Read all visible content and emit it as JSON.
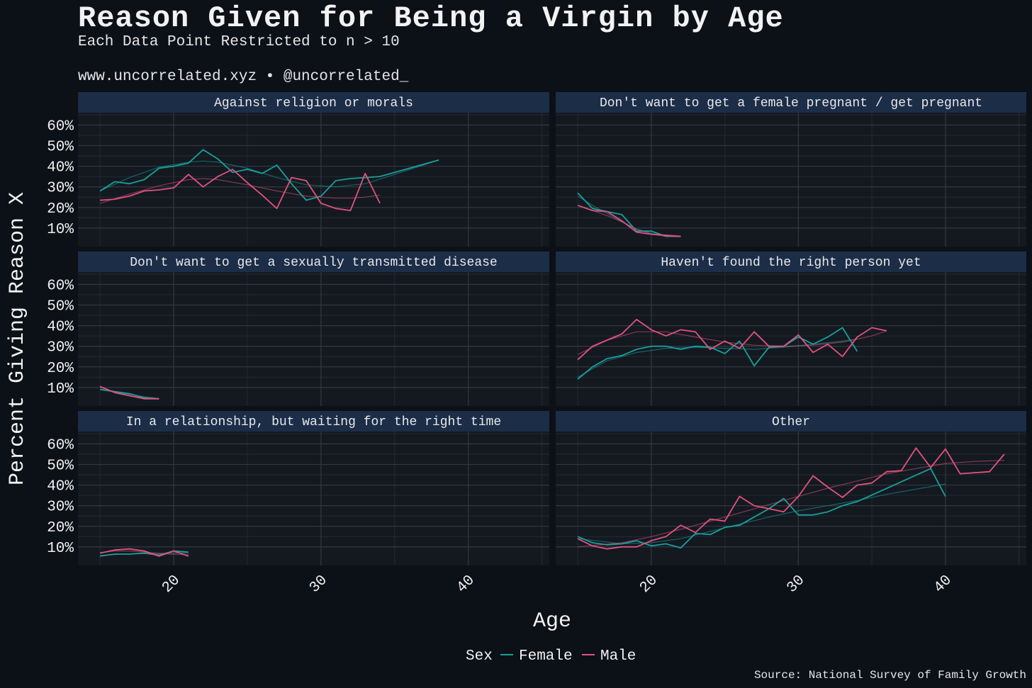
{
  "title": "Reason Given for Being a Virgin by Age",
  "subtitle": "Each Data Point Restricted to n > 10",
  "credit": "www.uncorrelated.xyz • @uncorrelated_",
  "source": "Source: National Survey of Family Growth",
  "colors": {
    "female": "#1a9e9a",
    "male": "#e0527e",
    "background": "#0c1017",
    "panel": "#141920",
    "strip": "#1c2d48"
  },
  "chart_data": {
    "type": "line",
    "xlabel": "Age",
    "ylabel": "Percent Giving Reason X",
    "xlim": [
      13.5,
      45.5
    ],
    "ylim": [
      0.01,
      0.66
    ],
    "x_ticks": [
      20,
      30,
      40
    ],
    "x_tick_labels": [
      "20",
      "30",
      "40"
    ],
    "y_ticks": [
      0.1,
      0.2,
      0.3,
      0.4,
      0.5,
      0.6
    ],
    "y_tick_labels": [
      "10%",
      "20%",
      "30%",
      "40%",
      "50%",
      "60%"
    ],
    "legend": {
      "title": "Sex",
      "position": "bottom",
      "entries": [
        "Female",
        "Male"
      ]
    },
    "smoothed_trend": true,
    "panels": [
      {
        "name": "Against religion or morals",
        "series": [
          {
            "name": "Female",
            "x": [
              15,
              16,
              17,
              18,
              19,
              20,
              21,
              22,
              23,
              24,
              25,
              26,
              27,
              28,
              29,
              30,
              31,
              32,
              33,
              34,
              38
            ],
            "y": [
              0.28,
              0.325,
              0.315,
              0.335,
              0.39,
              0.4,
              0.415,
              0.48,
              0.435,
              0.37,
              0.385,
              0.365,
              0.405,
              0.315,
              0.235,
              0.255,
              0.33,
              0.34,
              0.345,
              0.35,
              0.43
            ],
            "smooth_x": [
              15,
              17,
              19,
              21,
              22,
              23,
              25,
              27,
              29,
              31,
              33,
              35,
              38
            ],
            "smooth_y": [
              0.28,
              0.345,
              0.395,
              0.42,
              0.425,
              0.42,
              0.39,
              0.345,
              0.31,
              0.3,
              0.315,
              0.36,
              0.43
            ]
          },
          {
            "name": "Male",
            "x": [
              15,
              16,
              17,
              18,
              19,
              20,
              21,
              22,
              23,
              24,
              25,
              26,
              27,
              28,
              29,
              30,
              31,
              32,
              33,
              34
            ],
            "y": [
              0.235,
              0.24,
              0.255,
              0.28,
              0.285,
              0.295,
              0.36,
              0.3,
              0.35,
              0.385,
              0.32,
              0.26,
              0.195,
              0.345,
              0.33,
              0.22,
              0.195,
              0.185,
              0.365,
              0.22
            ],
            "smooth_x": [
              15,
              17,
              19,
              21,
              22,
              23,
              25,
              27,
              29,
              31,
              32,
              33,
              34
            ],
            "smooth_y": [
              0.22,
              0.265,
              0.305,
              0.335,
              0.34,
              0.335,
              0.31,
              0.28,
              0.255,
              0.245,
              0.245,
              0.25,
              0.26
            ]
          }
        ]
      },
      {
        "name": "Don't want to get a female pregnant / get pregnant",
        "series": [
          {
            "name": "Female",
            "x": [
              15,
              16,
              17,
              18,
              19,
              20,
              21,
              22
            ],
            "y": [
              0.27,
              0.195,
              0.18,
              0.165,
              0.085,
              0.085,
              0.06,
              0.06
            ],
            "smooth_x": [
              15,
              16,
              17,
              18,
              19,
              20,
              21,
              22
            ],
            "smooth_y": [
              0.255,
              0.21,
              0.17,
              0.13,
              0.095,
              0.075,
              0.062,
              0.058
            ]
          },
          {
            "name": "Male",
            "x": [
              15,
              16,
              17,
              18,
              19,
              20,
              21,
              22
            ],
            "y": [
              0.21,
              0.185,
              0.18,
              0.135,
              0.08,
              0.07,
              0.065,
              0.06
            ],
            "smooth_x": [
              15,
              16,
              17,
              18,
              19,
              20,
              21,
              22
            ],
            "smooth_y": [
              0.21,
              0.185,
              0.16,
              0.13,
              0.095,
              0.07,
              0.06,
              0.058
            ]
          }
        ]
      },
      {
        "name": "Don't want to get a sexually transmitted disease",
        "series": [
          {
            "name": "Female",
            "x": [
              15,
              16,
              17,
              18,
              19
            ],
            "y": [
              0.09,
              0.08,
              0.07,
              0.05,
              0.045
            ],
            "smooth_x": [
              15,
              16,
              17,
              18,
              19
            ],
            "smooth_y": [
              0.09,
              0.078,
              0.066,
              0.055,
              0.046
            ]
          },
          {
            "name": "Male",
            "x": [
              15,
              16,
              17,
              18,
              19
            ],
            "y": [
              0.105,
              0.075,
              0.06,
              0.045,
              0.045
            ],
            "smooth_x": [
              15,
              16,
              17,
              18,
              19
            ],
            "smooth_y": [
              0.1,
              0.078,
              0.06,
              0.048,
              0.044
            ]
          }
        ]
      },
      {
        "name": "Haven't found the right person yet",
        "series": [
          {
            "name": "Female",
            "x": [
              15,
              16,
              17,
              18,
              19,
              20,
              21,
              22,
              23,
              24,
              25,
              26,
              27,
              28,
              29,
              30,
              31,
              32,
              33,
              34
            ],
            "y": [
              0.14,
              0.2,
              0.24,
              0.255,
              0.285,
              0.3,
              0.3,
              0.285,
              0.3,
              0.295,
              0.265,
              0.325,
              0.205,
              0.295,
              0.3,
              0.345,
              0.31,
              0.345,
              0.39,
              0.275
            ],
            "smooth_x": [
              15,
              17,
              19,
              21,
              23,
              25,
              27,
              29,
              31,
              33,
              34
            ],
            "smooth_y": [
              0.15,
              0.23,
              0.27,
              0.29,
              0.295,
              0.29,
              0.285,
              0.295,
              0.31,
              0.325,
              0.335
            ]
          },
          {
            "name": "Male",
            "x": [
              15,
              16,
              17,
              18,
              19,
              20,
              21,
              22,
              23,
              24,
              25,
              26,
              27,
              28,
              29,
              30,
              31,
              32,
              33,
              34,
              35,
              36
            ],
            "y": [
              0.235,
              0.3,
              0.33,
              0.36,
              0.43,
              0.38,
              0.35,
              0.38,
              0.37,
              0.285,
              0.325,
              0.29,
              0.37,
              0.3,
              0.3,
              0.355,
              0.27,
              0.31,
              0.25,
              0.345,
              0.39,
              0.375
            ],
            "smooth_x": [
              15,
              17,
              19,
              21,
              23,
              25,
              27,
              29,
              31,
              33,
              35,
              36
            ],
            "smooth_y": [
              0.26,
              0.33,
              0.37,
              0.37,
              0.345,
              0.32,
              0.305,
              0.3,
              0.305,
              0.32,
              0.35,
              0.375
            ]
          }
        ]
      },
      {
        "name": "In a relationship, but waiting for the right time",
        "series": [
          {
            "name": "Female",
            "x": [
              15,
              16,
              17,
              18,
              19,
              20,
              21
            ],
            "y": [
              0.055,
              0.065,
              0.065,
              0.07,
              0.06,
              0.08,
              0.075
            ],
            "smooth_x": [
              15,
              16,
              17,
              18,
              19,
              20,
              21
            ],
            "smooth_y": [
              0.058,
              0.063,
              0.066,
              0.067,
              0.068,
              0.07,
              0.072
            ]
          },
          {
            "name": "Male",
            "x": [
              15,
              16,
              17,
              18,
              19,
              20,
              21
            ],
            "y": [
              0.07,
              0.085,
              0.09,
              0.08,
              0.055,
              0.08,
              0.055
            ],
            "smooth_x": [
              15,
              16,
              17,
              18,
              19,
              20,
              21
            ],
            "smooth_y": [
              0.072,
              0.08,
              0.08,
              0.075,
              0.068,
              0.064,
              0.062
            ]
          }
        ]
      },
      {
        "name": "Other",
        "series": [
          {
            "name": "Female",
            "x": [
              15,
              16,
              17,
              18,
              19,
              20,
              21,
              22,
              23,
              24,
              25,
              26,
              27,
              28,
              29,
              30,
              31,
              32,
              33,
              34,
              39,
              40
            ],
            "y": [
              0.15,
              0.12,
              0.11,
              0.115,
              0.13,
              0.105,
              0.115,
              0.095,
              0.165,
              0.16,
              0.195,
              0.205,
              0.245,
              0.285,
              0.335,
              0.255,
              0.255,
              0.27,
              0.3,
              0.32,
              0.48,
              0.345
            ],
            "smooth_x": [
              15,
              18,
              20,
              22,
              24,
              26,
              28,
              30,
              32,
              34,
              36,
              38,
              40
            ],
            "smooth_y": [
              0.14,
              0.115,
              0.12,
              0.14,
              0.175,
              0.21,
              0.245,
              0.275,
              0.3,
              0.325,
              0.355,
              0.38,
              0.405
            ]
          },
          {
            "name": "Male",
            "x": [
              15,
              16,
              17,
              18,
              19,
              20,
              21,
              22,
              23,
              24,
              25,
              26,
              27,
              28,
              29,
              30,
              31,
              32,
              33,
              34,
              35,
              36,
              37,
              38,
              39,
              40,
              41,
              43,
              44
            ],
            "y": [
              0.14,
              0.105,
              0.09,
              0.1,
              0.1,
              0.13,
              0.15,
              0.205,
              0.17,
              0.235,
              0.225,
              0.345,
              0.3,
              0.285,
              0.27,
              0.345,
              0.445,
              0.39,
              0.34,
              0.4,
              0.41,
              0.465,
              0.47,
              0.58,
              0.485,
              0.575,
              0.455,
              0.465,
              0.55
            ],
            "smooth_x": [
              15,
              18,
              20,
              22,
              24,
              26,
              28,
              30,
              32,
              34,
              36,
              38,
              40,
              42,
              44
            ],
            "smooth_y": [
              0.1,
              0.12,
              0.15,
              0.185,
              0.225,
              0.265,
              0.305,
              0.345,
              0.385,
              0.42,
              0.455,
              0.48,
              0.505,
              0.515,
              0.52
            ]
          }
        ]
      }
    ]
  }
}
